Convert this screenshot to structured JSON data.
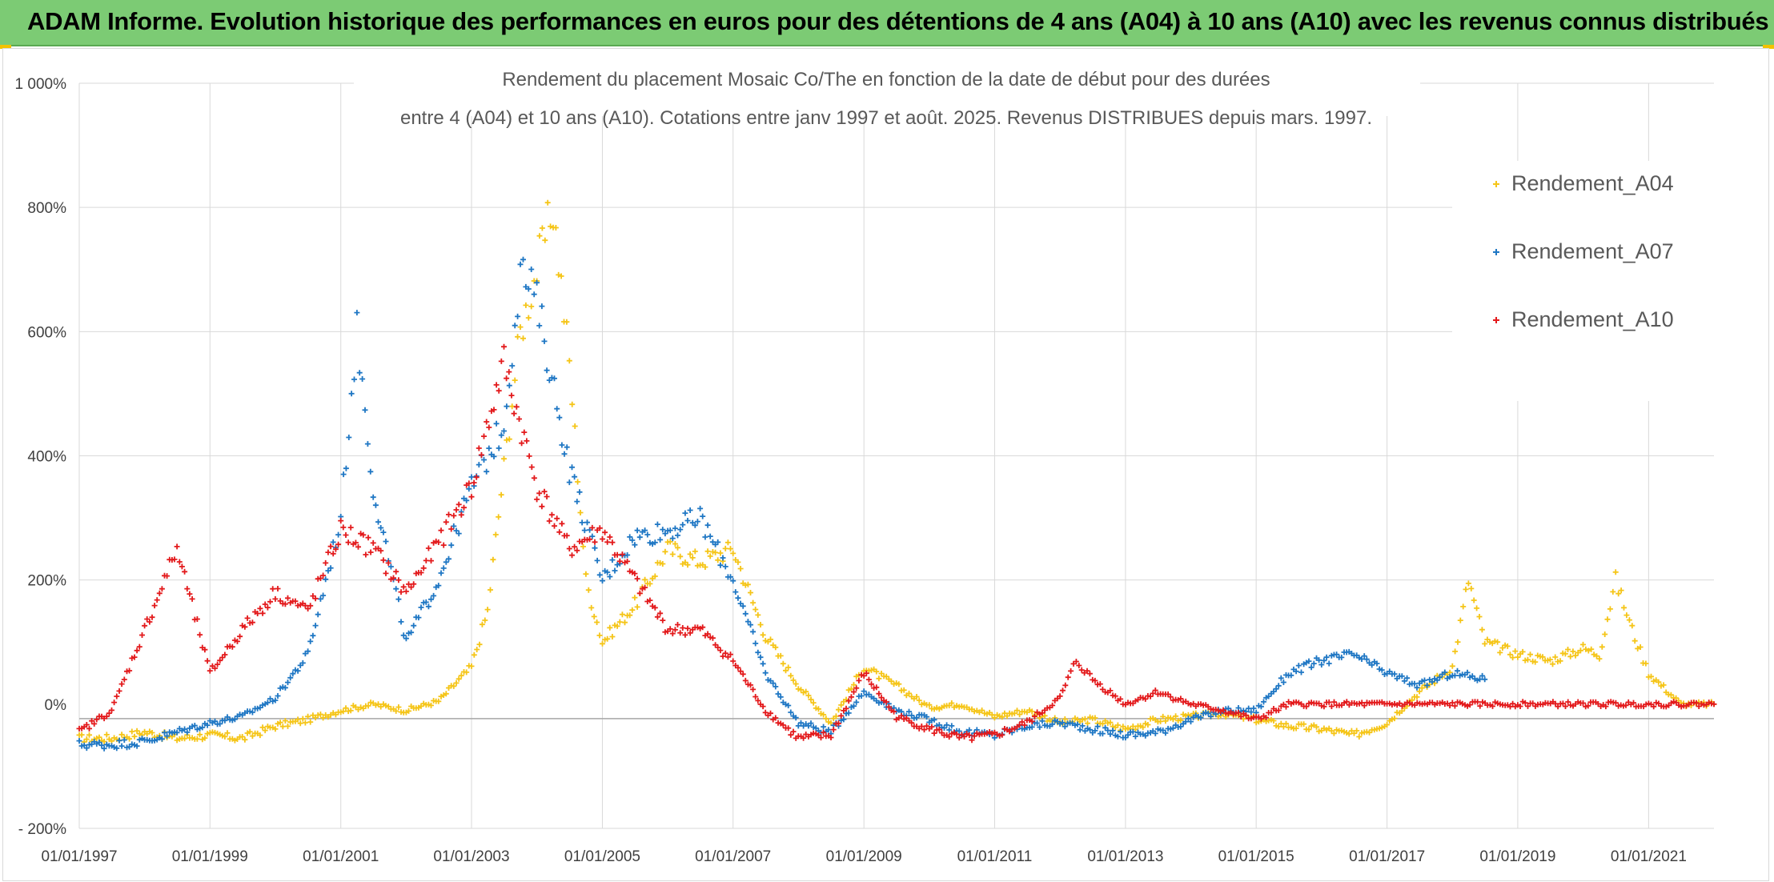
{
  "banner": {
    "title": "ADAM Informe. Evolution historique des performances en euros pour des détentions de 4 ans (A04) à 10 ans (A10) avec les revenus connus distribués"
  },
  "colors": {
    "banner_bg": "#7ccb74",
    "A04": "#f5c518",
    "A07": "#1f77c4",
    "A10": "#e31a1c",
    "grid": "#d9d9d9"
  },
  "chart_data": {
    "type": "scatter",
    "title_line1": "Rendement du placement Mosaic Co/The en fonction de la date de début pour des durées",
    "title_line2": "entre 4 (A04) et 10 ans (A10). Cotations entre janv 1997 et août. 2025. Revenus DISTRIBUES depuis mars. 1997.",
    "marker": "+",
    "x_axis": {
      "type": "date",
      "range": [
        "1997-01-01",
        "2022-01-01"
      ],
      "tick_labels": [
        "01/01/1997",
        "01/01/1999",
        "01/01/2001",
        "01/01/2003",
        "01/01/2005",
        "01/01/2007",
        "01/01/2009",
        "01/01/2011",
        "01/01/2013",
        "01/01/2015",
        "01/01/2017",
        "01/01/2019",
        "01/01/2021"
      ]
    },
    "y_axis": {
      "unit": "%",
      "range": [
        -200,
        1000
      ],
      "tick_labels": [
        "- 200%",
        "0%",
        "200%",
        "400%",
        "600%",
        "800%",
        "1 000%"
      ]
    },
    "grid": true,
    "legend_position": "top-right",
    "series": [
      {
        "name": "Rendement_A04",
        "points": [
          [
            "1997-01-01",
            -55
          ],
          [
            "1997-07-01",
            -55
          ],
          [
            "1998-01-01",
            -45
          ],
          [
            "1998-07-01",
            -55
          ],
          [
            "1999-01-01",
            -50
          ],
          [
            "1999-07-01",
            -55
          ],
          [
            "2000-01-01",
            -35
          ],
          [
            "2000-07-01",
            -25
          ],
          [
            "2001-01-01",
            -10
          ],
          [
            "2001-07-01",
            0
          ],
          [
            "2002-01-01",
            -10
          ],
          [
            "2002-07-01",
            5
          ],
          [
            "2003-01-01",
            60
          ],
          [
            "2003-04-01",
            150
          ],
          [
            "2003-07-01",
            380
          ],
          [
            "2003-10-01",
            600
          ],
          [
            "2004-01-01",
            700
          ],
          [
            "2004-04-01",
            800
          ],
          [
            "2004-07-01",
            550
          ],
          [
            "2004-10-01",
            200
          ],
          [
            "2005-01-01",
            100
          ],
          [
            "2005-07-01",
            160
          ],
          [
            "2006-01-01",
            250
          ],
          [
            "2006-07-01",
            230
          ],
          [
            "2007-01-01",
            250
          ],
          [
            "2007-07-01",
            110
          ],
          [
            "2008-01-01",
            30
          ],
          [
            "2008-07-01",
            -30
          ],
          [
            "2009-01-01",
            60
          ],
          [
            "2009-07-01",
            30
          ],
          [
            "2010-01-01",
            -5
          ],
          [
            "2010-07-01",
            0
          ],
          [
            "2011-01-01",
            -20
          ],
          [
            "2011-07-01",
            -10
          ],
          [
            "2012-01-01",
            -30
          ],
          [
            "2012-07-01",
            -25
          ],
          [
            "2013-01-01",
            -40
          ],
          [
            "2013-07-01",
            -25
          ],
          [
            "2014-01-01",
            -20
          ],
          [
            "2014-07-01",
            -15
          ],
          [
            "2015-01-01",
            -25
          ],
          [
            "2015-07-01",
            -35
          ],
          [
            "2016-01-01",
            -40
          ],
          [
            "2016-07-01",
            -50
          ],
          [
            "2017-01-01",
            -30
          ],
          [
            "2017-07-01",
            20
          ],
          [
            "2018-01-01",
            60
          ],
          [
            "2018-04-01",
            200
          ],
          [
            "2018-07-01",
            100
          ],
          [
            "2019-01-01",
            80
          ],
          [
            "2019-07-01",
            70
          ],
          [
            "2020-01-01",
            90
          ],
          [
            "2020-04-01",
            80
          ],
          [
            "2020-07-01",
            200
          ],
          [
            "2020-10-01",
            120
          ],
          [
            "2021-01-01",
            50
          ],
          [
            "2021-07-01",
            0
          ],
          [
            "2022-01-01",
            0
          ]
        ]
      },
      {
        "name": "Rendement_A07",
        "points": [
          [
            "1997-01-01",
            -65
          ],
          [
            "1997-07-01",
            -65
          ],
          [
            "1998-01-01",
            -60
          ],
          [
            "1998-07-01",
            -45
          ],
          [
            "1999-01-01",
            -30
          ],
          [
            "1999-07-01",
            -20
          ],
          [
            "2000-01-01",
            10
          ],
          [
            "2000-07-01",
            80
          ],
          [
            "2001-01-01",
            300
          ],
          [
            "2001-04-01",
            600
          ],
          [
            "2001-07-01",
            350
          ],
          [
            "2002-01-01",
            100
          ],
          [
            "2002-07-01",
            200
          ],
          [
            "2003-01-01",
            350
          ],
          [
            "2003-07-01",
            450
          ],
          [
            "2003-10-01",
            700
          ],
          [
            "2004-01-01",
            650
          ],
          [
            "2004-07-01",
            380
          ],
          [
            "2005-01-01",
            200
          ],
          [
            "2005-07-01",
            270
          ],
          [
            "2006-01-01",
            280
          ],
          [
            "2006-07-01",
            300
          ],
          [
            "2007-01-01",
            200
          ],
          [
            "2007-07-01",
            50
          ],
          [
            "2008-01-01",
            -30
          ],
          [
            "2008-07-01",
            -45
          ],
          [
            "2009-01-01",
            20
          ],
          [
            "2009-07-01",
            -10
          ],
          [
            "2010-01-01",
            -25
          ],
          [
            "2010-07-01",
            -45
          ],
          [
            "2011-01-01",
            -50
          ],
          [
            "2011-07-01",
            -35
          ],
          [
            "2012-01-01",
            -30
          ],
          [
            "2012-07-01",
            -40
          ],
          [
            "2013-01-01",
            -50
          ],
          [
            "2013-07-01",
            -45
          ],
          [
            "2014-01-01",
            -25
          ],
          [
            "2014-07-01",
            -10
          ],
          [
            "2015-01-01",
            -10
          ],
          [
            "2015-07-01",
            50
          ],
          [
            "2016-01-01",
            70
          ],
          [
            "2016-07-01",
            80
          ],
          [
            "2017-01-01",
            50
          ],
          [
            "2017-07-01",
            30
          ],
          [
            "2018-01-01",
            50
          ],
          [
            "2018-07-01",
            40
          ]
        ]
      },
      {
        "name": "Rendement_A10",
        "points": [
          [
            "1997-01-01",
            -45
          ],
          [
            "1997-07-01",
            -10
          ],
          [
            "1998-01-01",
            120
          ],
          [
            "1998-07-01",
            250
          ],
          [
            "1999-01-01",
            50
          ],
          [
            "1999-07-01",
            120
          ],
          [
            "2000-01-01",
            180
          ],
          [
            "2000-07-01",
            150
          ],
          [
            "2001-01-01",
            280
          ],
          [
            "2001-07-01",
            250
          ],
          [
            "2002-01-01",
            180
          ],
          [
            "2002-07-01",
            260
          ],
          [
            "2003-01-01",
            350
          ],
          [
            "2003-07-01",
            550
          ],
          [
            "2004-01-01",
            350
          ],
          [
            "2004-07-01",
            250
          ],
          [
            "2005-01-01",
            280
          ],
          [
            "2005-07-01",
            200
          ],
          [
            "2006-01-01",
            120
          ],
          [
            "2006-07-01",
            120
          ],
          [
            "2007-01-01",
            70
          ],
          [
            "2007-07-01",
            -10
          ],
          [
            "2008-01-01",
            -55
          ],
          [
            "2008-07-01",
            -50
          ],
          [
            "2009-01-01",
            50
          ],
          [
            "2009-07-01",
            -20
          ],
          [
            "2010-01-01",
            -40
          ],
          [
            "2010-07-01",
            -55
          ],
          [
            "2011-01-01",
            -50
          ],
          [
            "2011-07-01",
            -30
          ],
          [
            "2012-01-01",
            10
          ],
          [
            "2012-04-01",
            70
          ],
          [
            "2012-07-01",
            40
          ],
          [
            "2013-01-01",
            0
          ],
          [
            "2013-07-01",
            20
          ],
          [
            "2014-01-01",
            0
          ],
          [
            "2014-07-01",
            -10
          ],
          [
            "2015-01-01",
            -25
          ],
          [
            "2015-07-01",
            0
          ],
          [
            "2016-01-01",
            0
          ],
          [
            "2017-01-01",
            0
          ],
          [
            "2018-01-01",
            0
          ],
          [
            "2019-01-01",
            0
          ],
          [
            "2020-01-01",
            0
          ],
          [
            "2021-01-01",
            0
          ],
          [
            "2022-01-01",
            0
          ]
        ]
      }
    ]
  }
}
